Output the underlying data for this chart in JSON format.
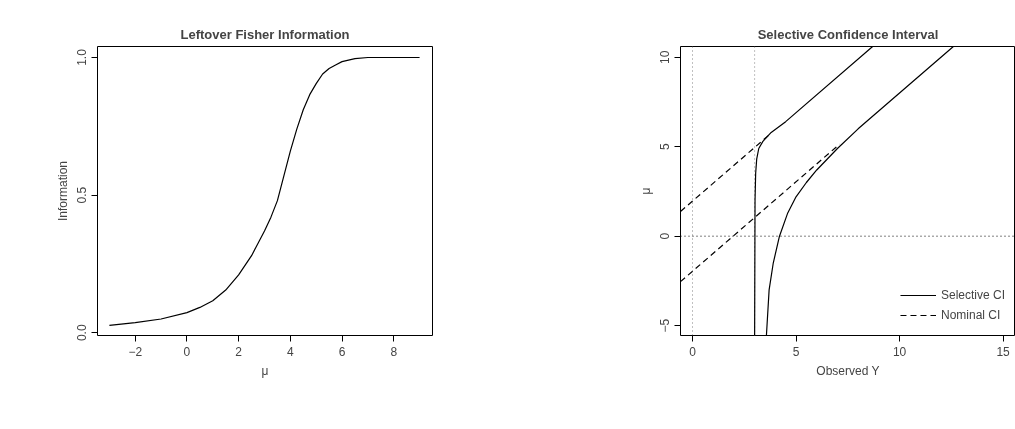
{
  "chart_data": [
    {
      "type": "line",
      "title": "Leftover Fisher Information",
      "xlabel": "μ",
      "ylabel": "Information",
      "x": [
        -3,
        -2,
        -1,
        0,
        0.5,
        1,
        1.5,
        2,
        2.5,
        3,
        3.25,
        3.5,
        3.75,
        4,
        4.25,
        4.5,
        4.75,
        5,
        5.25,
        5.5,
        5.75,
        6,
        6.5,
        7,
        8,
        9
      ],
      "series": [
        {
          "color": "#000000",
          "values": [
            0.027,
            0.037,
            0.05,
            0.073,
            0.092,
            0.116,
            0.155,
            0.21,
            0.28,
            0.37,
            0.42,
            0.48,
            0.57,
            0.66,
            0.74,
            0.81,
            0.865,
            0.905,
            0.94,
            0.96,
            0.973,
            0.985,
            0.996,
            1.0,
            1.0,
            1.0
          ]
        }
      ],
      "xlim": [
        -3.46,
        9.5
      ],
      "ylim": [
        -0.01,
        1.04
      ],
      "xticks": [
        -2,
        0,
        2,
        4,
        6,
        8
      ],
      "yticks": [
        {
          "value": 0,
          "label": "0.0"
        },
        {
          "value": 0.5,
          "label": "0.5"
        },
        {
          "value": 1.0,
          "label": "1.0"
        }
      ],
      "grid": false,
      "legend": false,
      "line_style": "solid"
    },
    {
      "type": "line",
      "title": "Selective Confidence Interval",
      "xlabel": "Observed Y",
      "ylabel": "μ",
      "series": [
        {
          "name": "Selective CI",
          "color": "#000000",
          "line_style": "solid",
          "x": [
            3.0,
            3.02,
            3.05,
            3.1,
            3.2,
            3.4,
            3.8,
            4.5,
            8.7
          ],
          "values": [
            -5.55,
            2,
            3.5,
            4.3,
            4.9,
            5.3,
            5.8,
            6.4,
            10.6
          ]
        },
        {
          "color": "#000000",
          "line_style": "solid",
          "x": [
            3.57,
            3.7,
            3.9,
            4.2,
            4.6,
            5,
            5.5,
            6,
            7,
            8,
            12.6
          ],
          "values": [
            -5.55,
            -3,
            -1.5,
            0,
            1.3,
            2.2,
            3.0,
            3.7,
            4.9,
            6.0,
            10.6
          ]
        },
        {
          "name": "Nominal CI",
          "color": "#000000",
          "line_style": "dashed",
          "x": [
            -0.58,
            3.7
          ],
          "values": [
            1.38,
            5.66
          ]
        },
        {
          "color": "#000000",
          "line_style": "dashed",
          "x": [
            -0.58,
            7.1
          ],
          "values": [
            -2.54,
            5.14
          ]
        }
      ],
      "ref_lines": [
        {
          "axis": "x",
          "value": 0,
          "color": "#808080",
          "line_style": "dotted"
        },
        {
          "axis": "x",
          "value": 3,
          "color": "#808080",
          "line_style": "dotted"
        },
        {
          "axis": "y",
          "value": 0,
          "color": "#000000",
          "line_style": "dotted"
        }
      ],
      "xlim": [
        -0.58,
        15.6
      ],
      "ylim": [
        -5.55,
        10.6
      ],
      "xticks": [
        0,
        5,
        10,
        15
      ],
      "yticks": [
        -5,
        0,
        5,
        10
      ],
      "grid": false,
      "legend": "bottom right"
    }
  ]
}
